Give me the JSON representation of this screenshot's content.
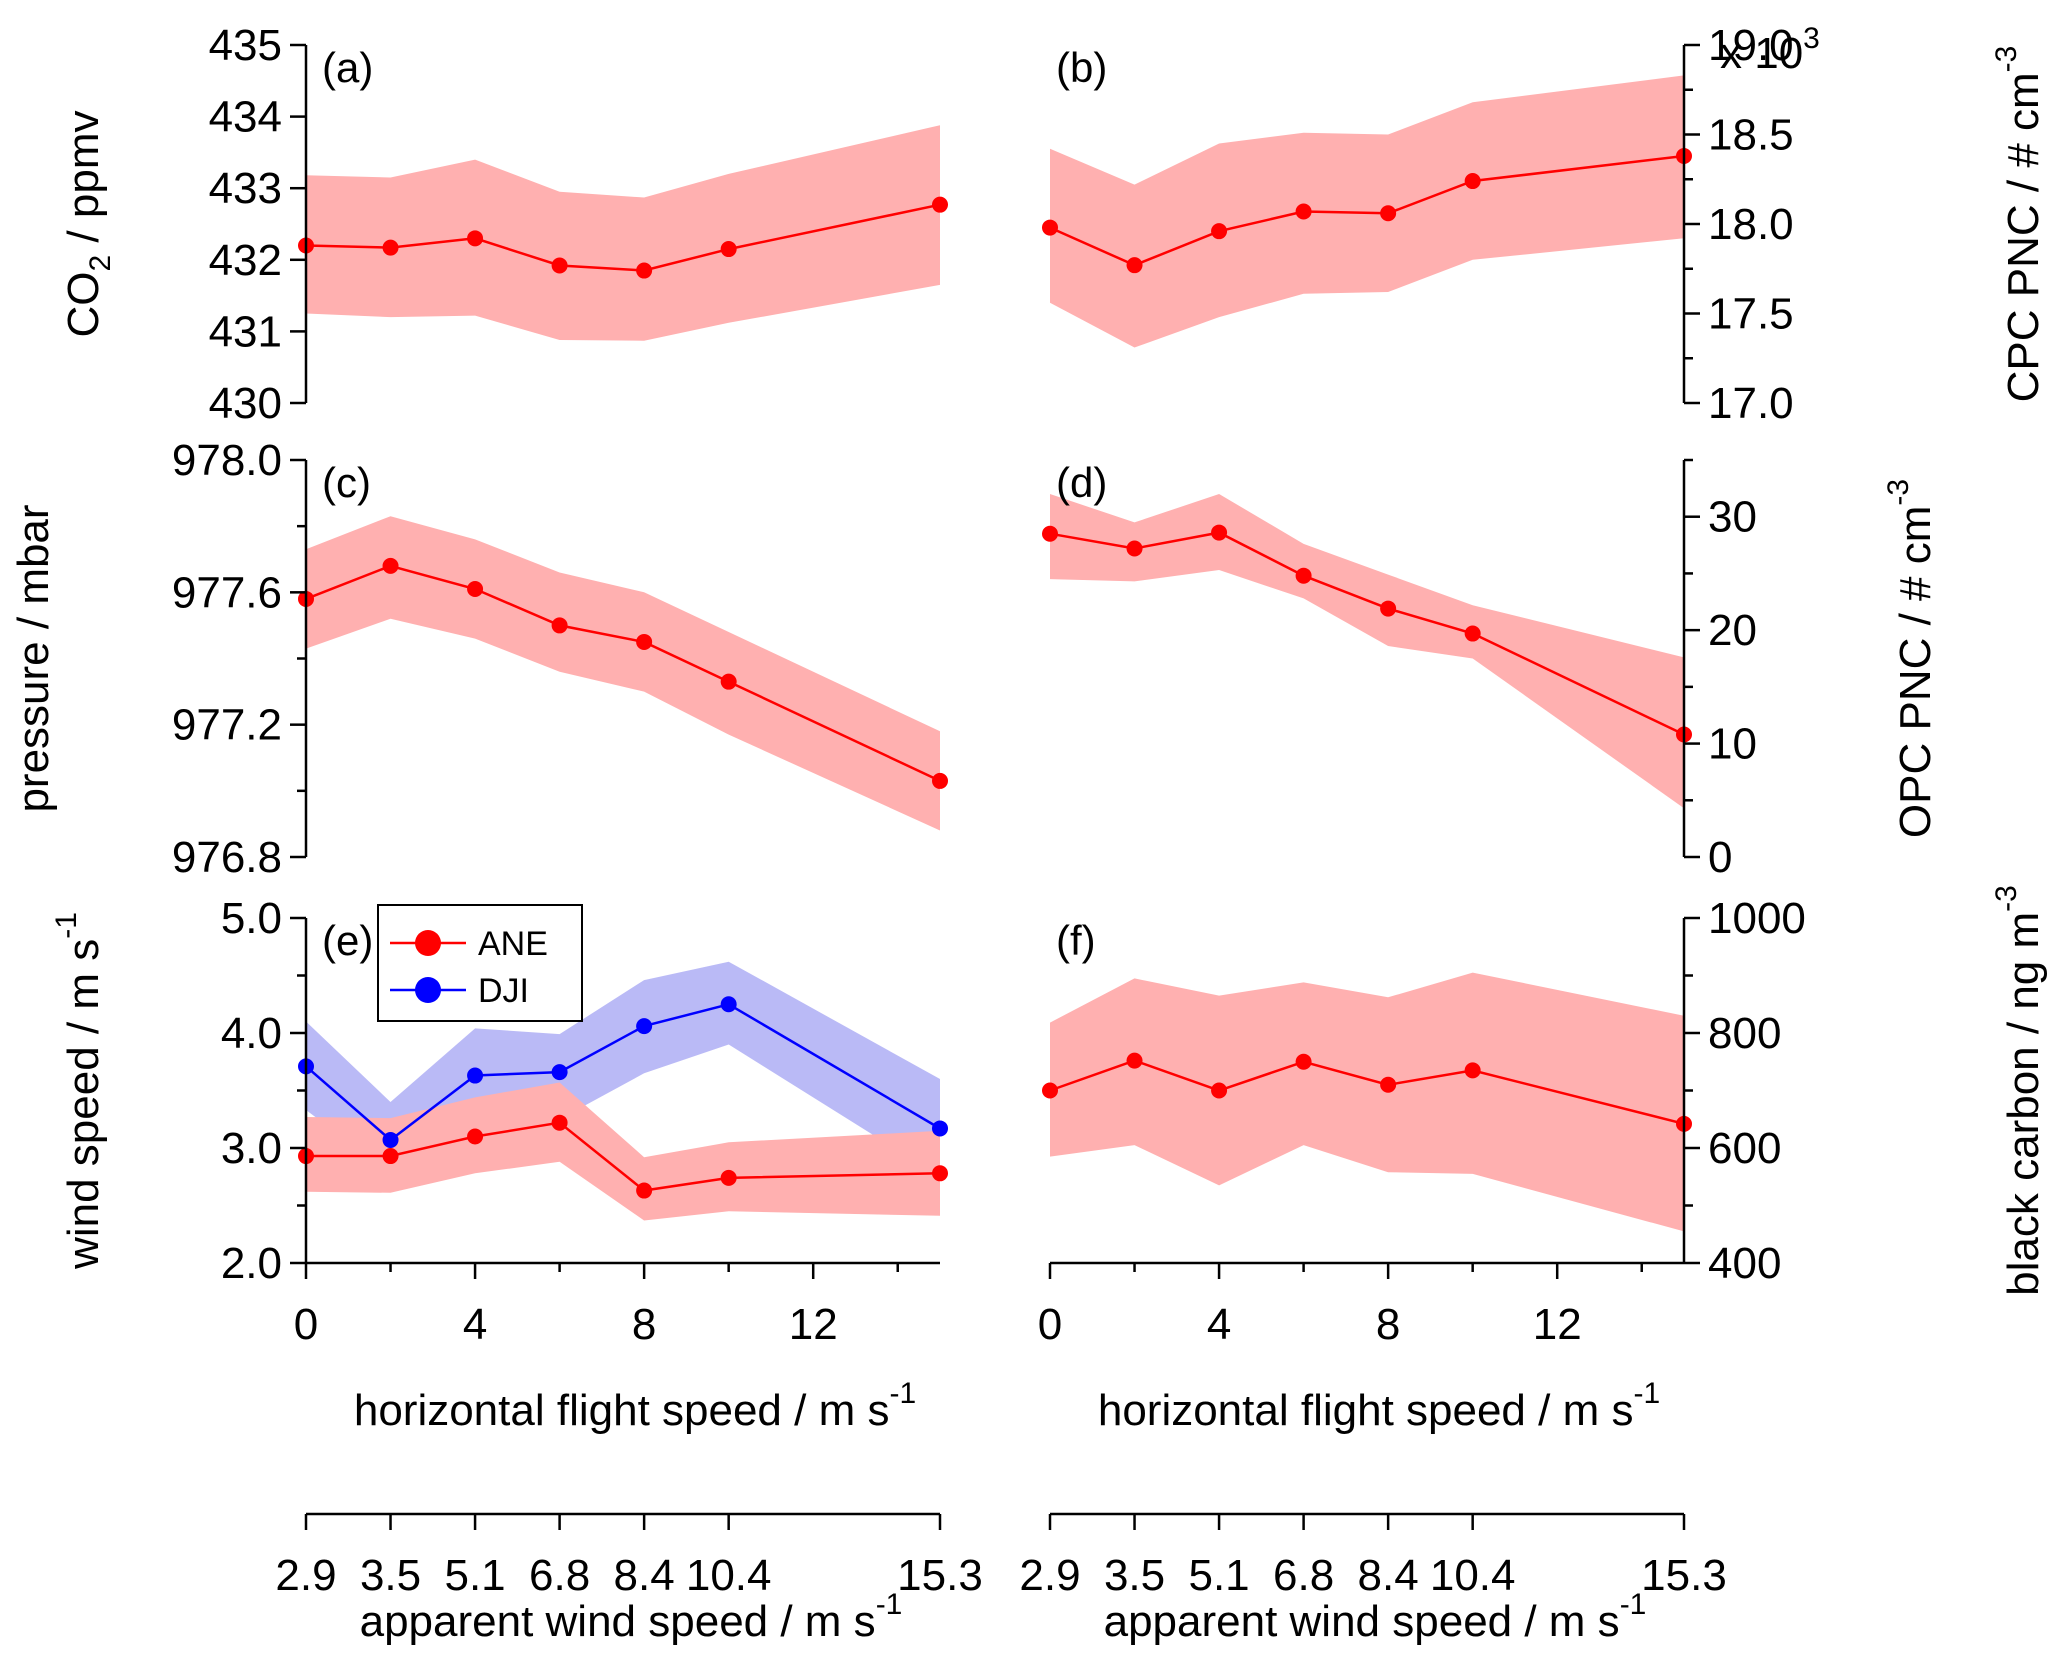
{
  "chart_data": [
    {
      "type": "line",
      "panel": "(a)",
      "ylabel": {
        "main": "CO",
        "sub": "2",
        "tail": " / ppmv"
      },
      "y_axis_side": "left",
      "ylim": [
        430,
        435
      ],
      "ytick_labels": [
        "430",
        "431",
        "432",
        "433",
        "434",
        "435"
      ],
      "x": [
        0,
        2,
        4,
        6,
        8,
        10,
        15
      ],
      "series": [
        {
          "name": "CO2",
          "color": "#ff0000",
          "band_color": "#ffb0b0",
          "values": [
            432.2,
            432.17,
            432.3,
            431.92,
            431.85,
            432.15,
            432.77
          ],
          "lower": [
            431.25,
            431.2,
            431.22,
            430.88,
            430.87,
            431.12,
            431.65
          ],
          "upper": [
            433.18,
            433.15,
            433.4,
            432.95,
            432.87,
            433.2,
            433.88
          ]
        }
      ]
    },
    {
      "type": "line",
      "panel": "(b)",
      "ylabel": {
        "main": "CPC PNC / # cm",
        "sup": "-3"
      },
      "y_axis_side": "right",
      "ylim": [
        17.0,
        19.0
      ],
      "ytick_labels": [
        "17.0",
        "17.5",
        "18.0",
        "18.5",
        "19.0"
      ],
      "multiplier": {
        "main": "x 10",
        "sup": "3"
      },
      "x": [
        0,
        2,
        4,
        6,
        8,
        10,
        15
      ],
      "series": [
        {
          "name": "CPC PNC",
          "color": "#ff0000",
          "band_color": "#ffb0b0",
          "values": [
            17.98,
            17.77,
            17.96,
            18.07,
            18.06,
            18.24,
            18.38
          ],
          "lower": [
            17.56,
            17.31,
            17.48,
            17.61,
            17.62,
            17.8,
            17.92
          ],
          "upper": [
            18.42,
            18.22,
            18.45,
            18.51,
            18.5,
            18.68,
            18.83
          ]
        }
      ]
    },
    {
      "type": "line",
      "panel": "(c)",
      "ylabel": {
        "main": "pressure / mbar"
      },
      "y_axis_side": "left",
      "ylim": [
        976.8,
        978.0
      ],
      "ytick_labels": [
        "976.8",
        "977.2",
        "977.6",
        "978.0"
      ],
      "x": [
        0,
        2,
        4,
        6,
        8,
        10,
        15
      ],
      "series": [
        {
          "name": "pressure",
          "color": "#ff0000",
          "band_color": "#ffb0b0",
          "values": [
            977.58,
            977.68,
            977.61,
            977.5,
            977.45,
            977.33,
            977.03
          ],
          "lower": [
            977.43,
            977.52,
            977.46,
            977.36,
            977.3,
            977.17,
            976.88
          ],
          "upper": [
            977.73,
            977.83,
            977.76,
            977.66,
            977.6,
            977.48,
            977.18
          ]
        }
      ]
    },
    {
      "type": "line",
      "panel": "(d)",
      "ylabel": {
        "main": "OPC PNC / # cm",
        "sup": "-3"
      },
      "y_axis_side": "right",
      "ylim": [
        0,
        35
      ],
      "ytick_labels": [
        "0",
        "10",
        "20",
        "30"
      ],
      "x": [
        0,
        2,
        4,
        6,
        8,
        10,
        15
      ],
      "series": [
        {
          "name": "OPC PNC",
          "color": "#ff0000",
          "band_color": "#ffb0b0",
          "values": [
            28.5,
            27.2,
            28.6,
            24.8,
            21.9,
            19.7,
            10.8
          ],
          "lower": [
            24.5,
            24.3,
            25.3,
            22.8,
            18.6,
            17.5,
            4.3
          ],
          "upper": [
            32.0,
            29.5,
            32.0,
            27.6,
            24.9,
            22.2,
            17.6
          ]
        }
      ]
    },
    {
      "type": "line",
      "panel": "(e)",
      "ylabel": {
        "main": "wind speed / m s",
        "sup": "-1"
      },
      "y_axis_side": "left",
      "ylim": [
        2.0,
        5.0
      ],
      "ytick_labels": [
        "2.0",
        "3.0",
        "4.0",
        "5.0"
      ],
      "xtick_labels": [
        "0",
        "4",
        "8",
        "12"
      ],
      "xlabel": {
        "main": "horizontal flight speed / m s",
        "sup": "-1"
      },
      "secondary_xtick_labels": [
        "2.9",
        "3.5",
        "5.1",
        "6.8",
        "8.4",
        "10.4",
        "15.3"
      ],
      "secondary_xlabel": {
        "main": "apparent wind speed / m s",
        "sup": "-1"
      },
      "legend": [
        "ANE",
        "DJI"
      ],
      "legend_position": "top-left",
      "x": [
        0,
        2,
        4,
        6,
        8,
        10,
        15
      ],
      "series": [
        {
          "name": "DJI",
          "color": "#0000ff",
          "band_color": "#aeaef5",
          "values": [
            3.71,
            3.07,
            3.63,
            3.66,
            4.06,
            4.25,
            3.17
          ],
          "lower": [
            3.33,
            2.78,
            3.12,
            3.25,
            3.65,
            3.9,
            2.75
          ],
          "upper": [
            4.1,
            3.4,
            4.04,
            3.99,
            4.46,
            4.62,
            3.6
          ]
        },
        {
          "name": "ANE",
          "color": "#ff0000",
          "band_color": "#ffb0b0",
          "values": [
            2.93,
            2.93,
            3.1,
            3.22,
            2.63,
            2.74,
            2.78
          ],
          "lower": [
            2.62,
            2.61,
            2.78,
            2.88,
            2.37,
            2.45,
            2.41
          ],
          "upper": [
            3.27,
            3.26,
            3.44,
            3.57,
            2.92,
            3.05,
            3.15
          ]
        }
      ]
    },
    {
      "type": "line",
      "panel": "(f)",
      "ylabel": {
        "main": "black carbon / ng m",
        "sup": "-3"
      },
      "y_axis_side": "right",
      "ylim": [
        400,
        1000
      ],
      "ytick_labels": [
        "400",
        "600",
        "800",
        "1000"
      ],
      "xtick_labels": [
        "0",
        "4",
        "8",
        "12"
      ],
      "xlabel": {
        "main": "horizontal flight speed / m s",
        "sup": "-1"
      },
      "secondary_xtick_labels": [
        "2.9",
        "3.5",
        "5.1",
        "6.8",
        "8.4",
        "10.4",
        "15.3"
      ],
      "secondary_xlabel": {
        "main": "apparent wind speed / m s",
        "sup": "-1"
      },
      "x": [
        0,
        2,
        4,
        6,
        8,
        10,
        15
      ],
      "series": [
        {
          "name": "black carbon",
          "color": "#ff0000",
          "band_color": "#ffb0b0",
          "values": [
            700,
            752,
            700,
            750,
            710,
            735,
            642
          ],
          "lower": [
            585,
            605,
            535,
            605,
            558,
            555,
            455
          ],
          "upper": [
            818,
            895,
            865,
            888,
            862,
            905,
            830
          ]
        }
      ]
    }
  ]
}
